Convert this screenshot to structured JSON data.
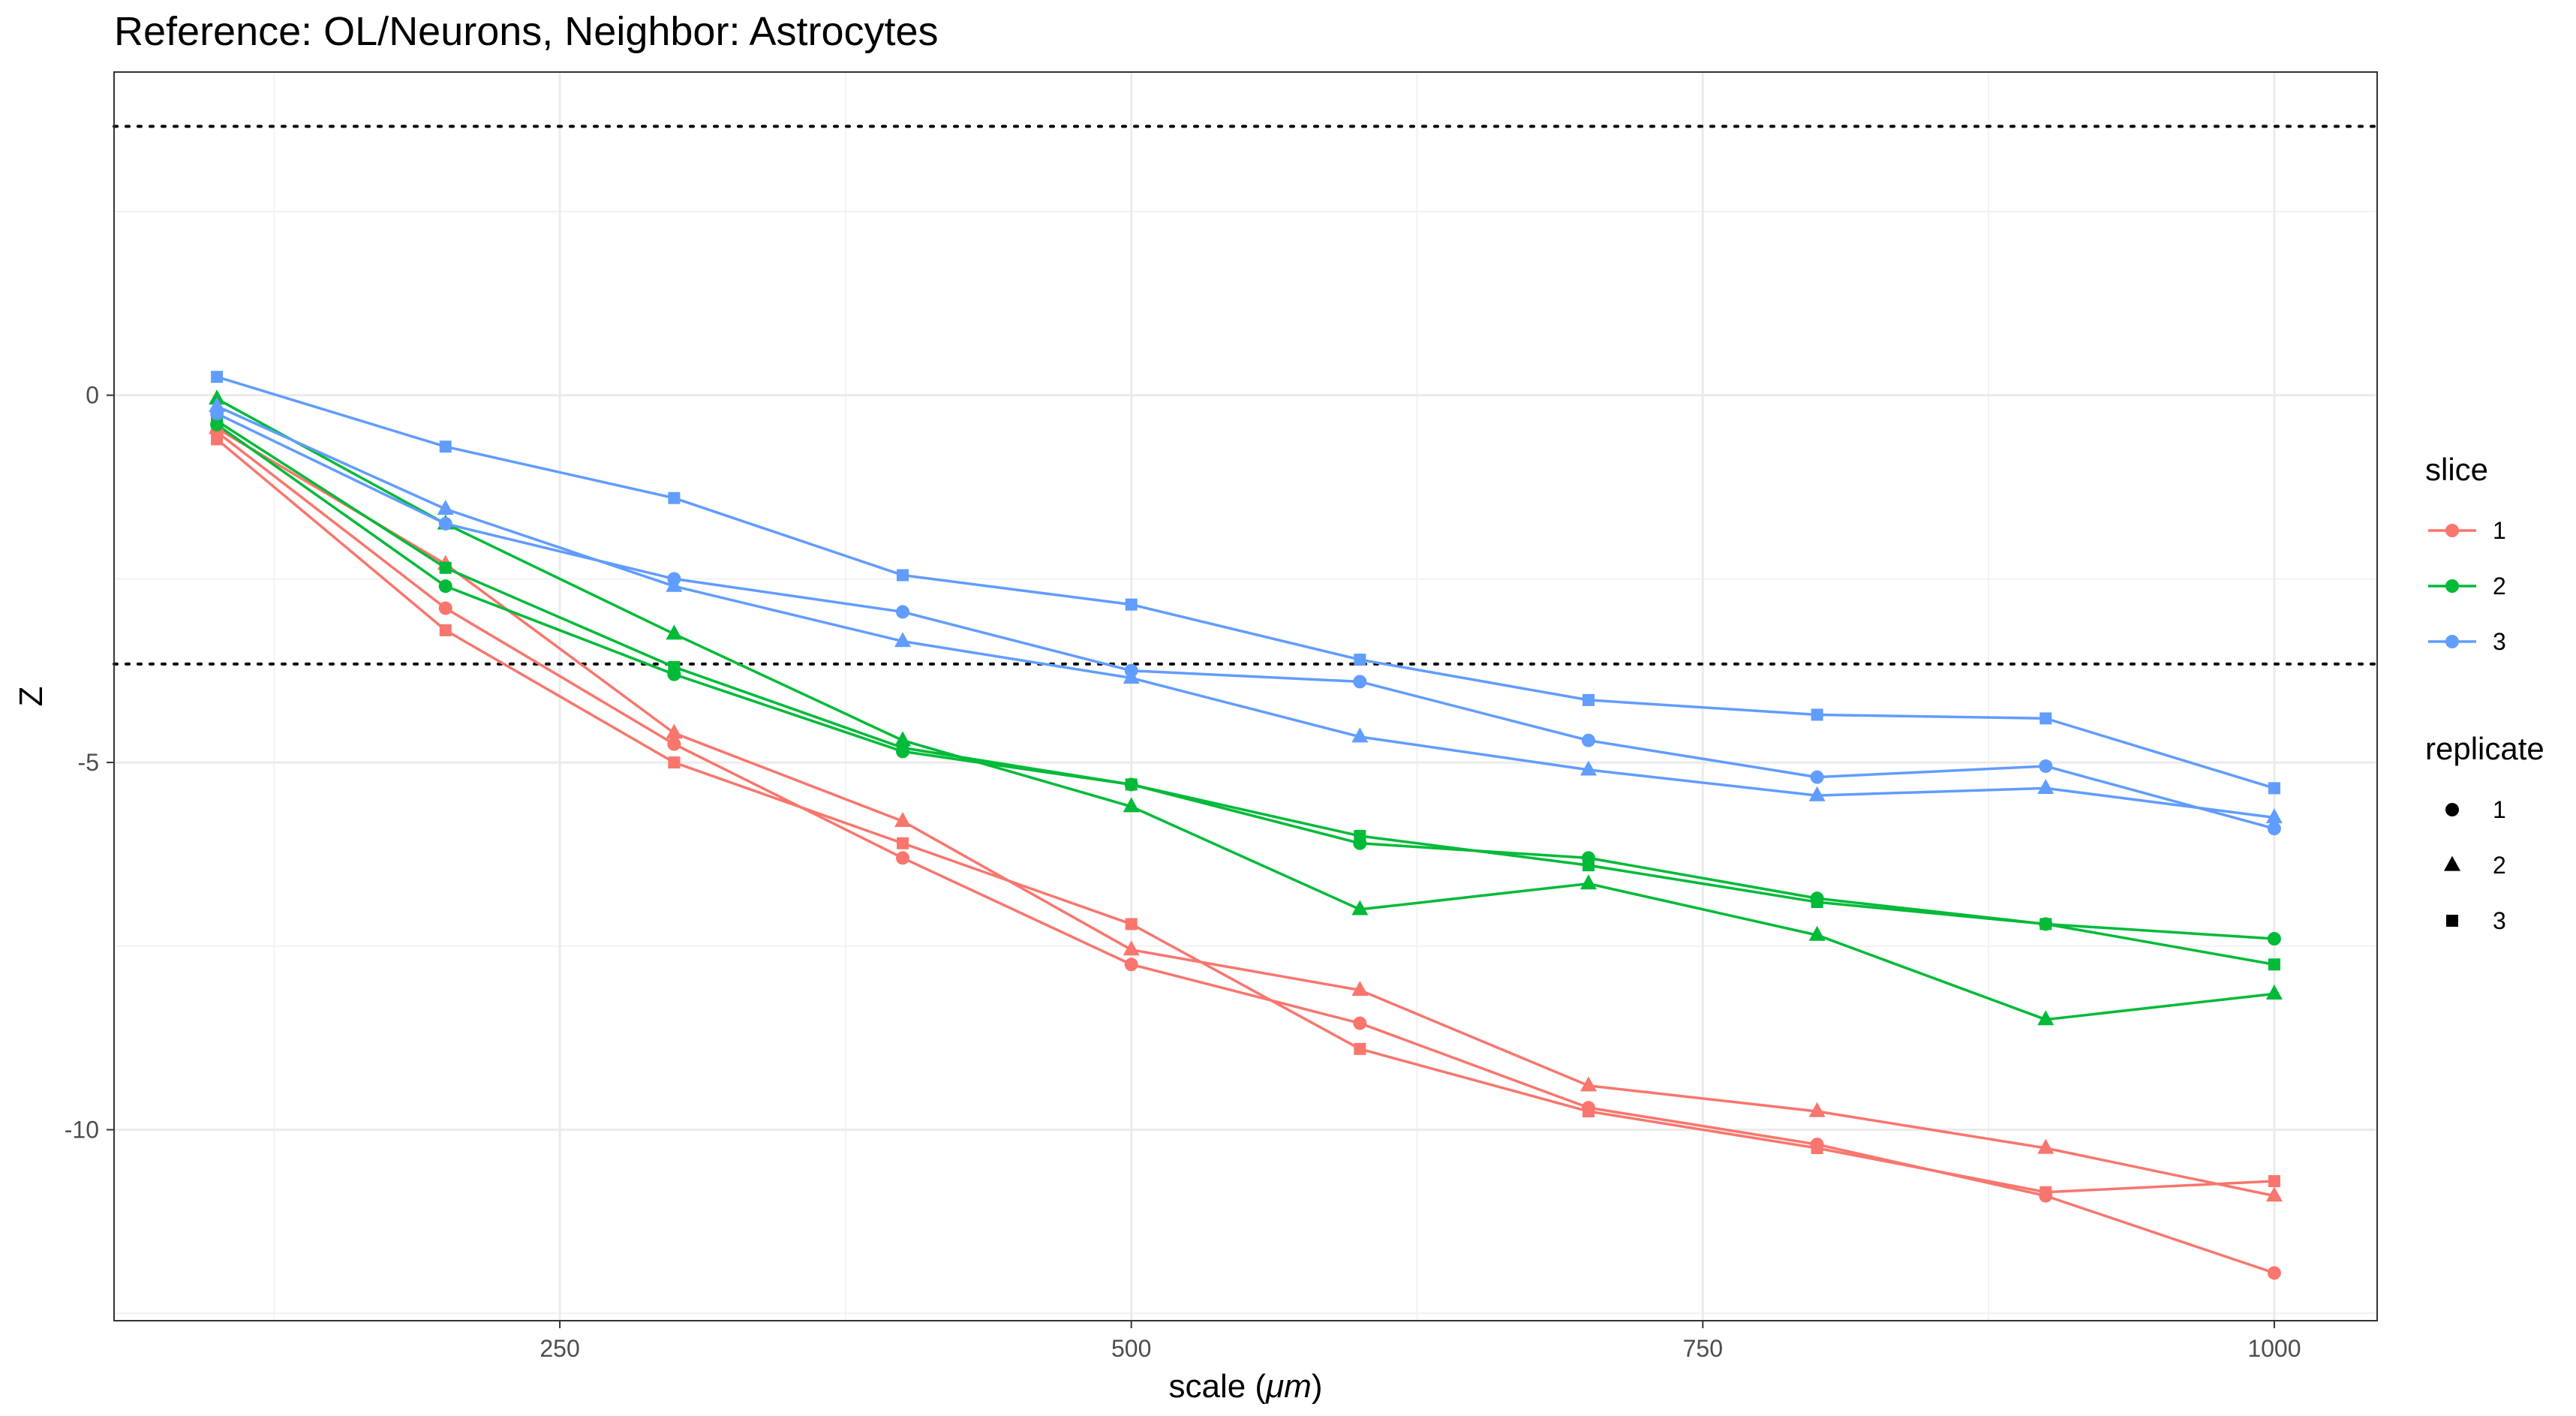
{
  "chart_data": {
    "type": "line",
    "title": "Reference: OL/Neurons, Neighbor: Astrocytes",
    "xlabel": "scale (",
    "xlabel_unit": "μm",
    "xlabel_close": ")",
    "ylabel": "Z",
    "xlim": [
      55,
      1045
    ],
    "ylim": [
      -12.6,
      4.4
    ],
    "x_ticks": [
      250,
      500,
      750,
      1000
    ],
    "x_tick_labels": [
      "250",
      "500",
      "750",
      "1000"
    ],
    "y_ticks": [
      0,
      -5,
      -10
    ],
    "y_tick_labels": [
      "0",
      "-5",
      "-10"
    ],
    "x_minor": [
      125,
      375,
      625,
      875
    ],
    "y_minor": [
      2.5,
      -2.5,
      -7.5,
      -12.5
    ],
    "hlines": [
      3.66,
      -3.66
    ],
    "grid": true,
    "legend_position": "right",
    "colors": {
      "1": "#F8766D",
      "2": "#00BA38",
      "3": "#619CFF"
    },
    "legend_slice": {
      "title": "slice",
      "items": [
        "1",
        "2",
        "3"
      ]
    },
    "legend_replicate": {
      "title": "replicate",
      "items": [
        "1",
        "2",
        "3"
      ]
    },
    "x": [
      100,
      200,
      300,
      400,
      500,
      600,
      700,
      800,
      900,
      1000
    ],
    "series": [
      {
        "slice": "1",
        "replicate": "1",
        "values": [
          -0.5,
          -2.9,
          -4.75,
          -6.3,
          -7.75,
          -8.55,
          -9.7,
          -10.2,
          -10.9,
          -11.95
        ]
      },
      {
        "slice": "1",
        "replicate": "2",
        "values": [
          -0.45,
          -2.3,
          -4.6,
          -5.8,
          -7.55,
          -8.1,
          -9.4,
          -9.75,
          -10.25,
          -10.9
        ]
      },
      {
        "slice": "1",
        "replicate": "3",
        "values": [
          -0.6,
          -3.2,
          -5.0,
          -6.1,
          -7.2,
          -8.9,
          -9.75,
          -10.25,
          -10.85,
          -10.7
        ]
      },
      {
        "slice": "2",
        "replicate": "1",
        "values": [
          -0.4,
          -2.6,
          -3.8,
          -4.85,
          -5.3,
          -6.1,
          -6.3,
          -6.85,
          -7.2,
          -7.4
        ]
      },
      {
        "slice": "2",
        "replicate": "2",
        "values": [
          -0.05,
          -1.75,
          -3.25,
          -4.7,
          -5.6,
          -7.0,
          -6.65,
          -7.35,
          -8.5,
          -8.15
        ]
      },
      {
        "slice": "2",
        "replicate": "3",
        "values": [
          -0.35,
          -2.35,
          -3.7,
          -4.8,
          -5.3,
          -6.0,
          -6.4,
          -6.9,
          -7.2,
          -7.75
        ]
      },
      {
        "slice": "3",
        "replicate": "1",
        "values": [
          -0.25,
          -1.75,
          -2.5,
          -2.95,
          -3.75,
          -3.9,
          -4.7,
          -5.2,
          -5.05,
          -5.9
        ]
      },
      {
        "slice": "3",
        "replicate": "2",
        "values": [
          -0.15,
          -1.55,
          -2.6,
          -3.35,
          -3.85,
          -4.65,
          -5.1,
          -5.45,
          -5.35,
          -5.75
        ]
      },
      {
        "slice": "3",
        "replicate": "3",
        "values": [
          0.25,
          -0.7,
          -1.4,
          -2.45,
          -2.85,
          -3.6,
          -4.15,
          -4.35,
          -4.4,
          -5.35
        ]
      }
    ]
  }
}
